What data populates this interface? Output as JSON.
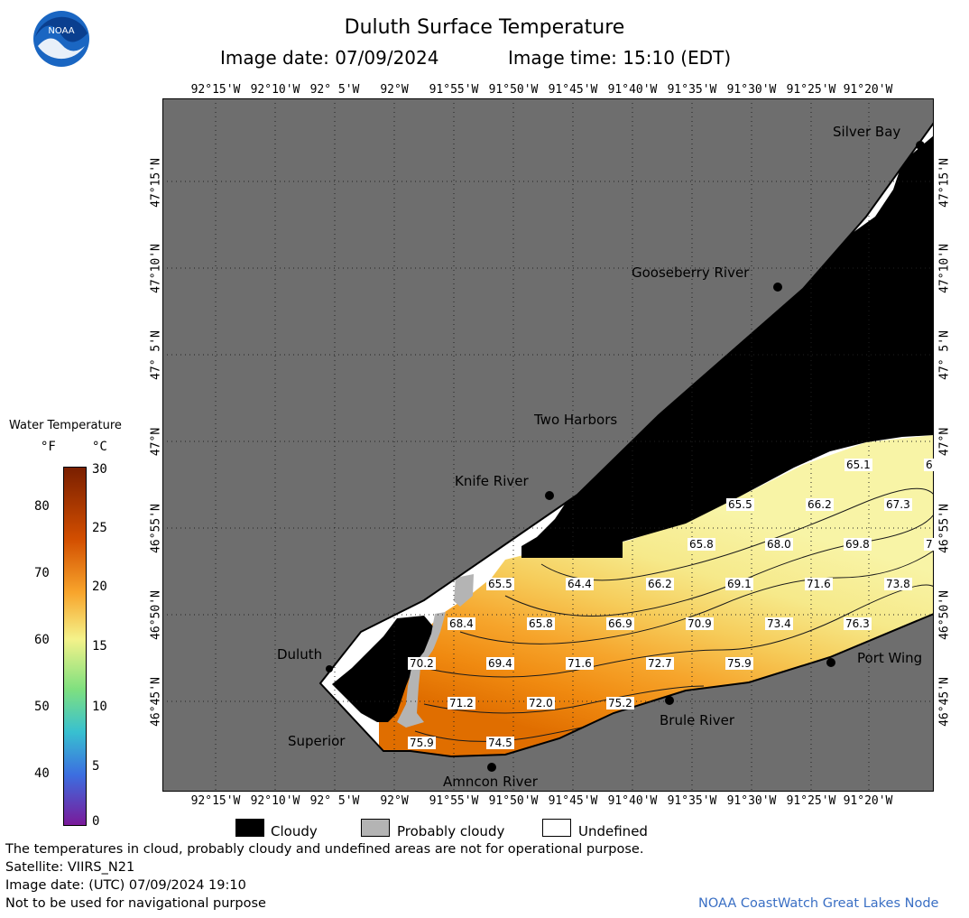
{
  "header": {
    "title": "Duluth Surface Temperature",
    "image_date": "Image date: 07/09/2024",
    "image_time": "Image time: 15:10 (EDT)"
  },
  "logo": {
    "text": "NOAA",
    "icon": "noaa-logo"
  },
  "lon_labels": [
    "92°15'W",
    "92°10'W",
    "92° 5'W",
    "92°W",
    "91°55'W",
    "91°50'W",
    "91°45'W",
    "91°40'W",
    "91°35'W",
    "91°30'W",
    "91°25'W",
    "91°20'W"
  ],
  "lat_labels": [
    "47°15'N",
    "47°10'N",
    "47° 5'N",
    "47°N",
    "46°55'N",
    "46°50'N",
    "46°45'N"
  ],
  "places": [
    "Silver Bay",
    "Gooseberry River",
    "Two Harbors",
    "Knife River",
    "Duluth",
    "Superior",
    "Amncon River",
    "Brule River",
    "Port Wing"
  ],
  "temps": [
    "65.1",
    "6",
    "65.5",
    "66.2",
    "67.3",
    "65.8",
    "68.0",
    "69.8",
    "7",
    "65.5",
    "64.4",
    "66.2",
    "69.1",
    "71.6",
    "73.8",
    "68.4",
    "65.8",
    "66.9",
    "70.9",
    "73.4",
    "76.3",
    "70.2",
    "69.4",
    "71.6",
    "72.7",
    "75.9",
    "71.2",
    "72.0",
    "75.2",
    "75.9",
    "74.5"
  ],
  "colorbar": {
    "title": "Water Temperature",
    "unit_f": "°F",
    "unit_c": "°C",
    "f_ticks": [
      "80",
      "70",
      "60",
      "50",
      "40"
    ],
    "c_ticks": [
      "30",
      "25",
      "20",
      "15",
      "10",
      "5",
      "0"
    ],
    "colors": [
      "#7a1f00",
      "#d24e00",
      "#f8a52c",
      "#f4f28a",
      "#7fe07f",
      "#38c0d0",
      "#3c6ee0",
      "#7a1a9a"
    ]
  },
  "legend": {
    "cloudy": "Cloudy",
    "probably_cloudy": "Probably cloudy",
    "undefined": "Undefined"
  },
  "footer": {
    "line1": "The temperatures in cloud, probably cloudy and undefined areas are not for operational purpose.",
    "line2": "Satellite: VIIRS_N21",
    "line3": "Image date: (UTC) 07/09/2024  19:10",
    "line4": "Not to be used for navigational purpose",
    "credit": "NOAA CoastWatch Great Lakes Node"
  },
  "colors": {
    "land": "#6e6e6e",
    "cloud": "#000000",
    "probably_cloudy": "#b4b4b4",
    "credit": "#3a6fc4"
  }
}
